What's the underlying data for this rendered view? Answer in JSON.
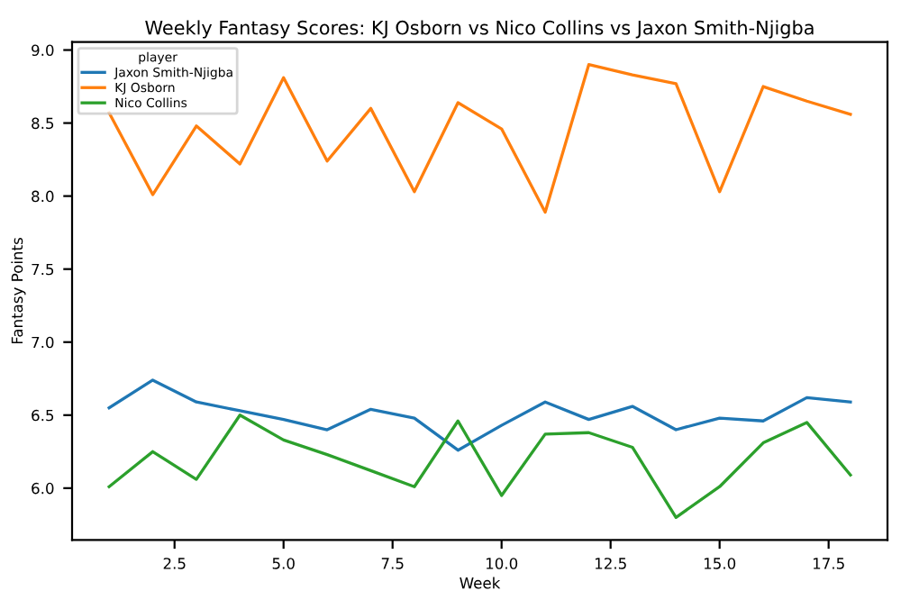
{
  "chart_data": {
    "type": "line",
    "title": "Weekly Fantasy Scores: KJ Osborn vs Nico Collins vs Jaxon Smith-Njigba",
    "xlabel": "Week",
    "ylabel": "Fantasy Points",
    "legend_title": "player",
    "legend": "top left",
    "grid": false,
    "x": [
      1,
      2,
      3,
      4,
      5,
      6,
      7,
      8,
      9,
      10,
      11,
      12,
      13,
      14,
      15,
      16,
      17,
      18
    ],
    "series": [
      {
        "name": "Jaxon Smith-Njigba",
        "color": "#1f77b4",
        "values": [
          6.55,
          6.74,
          6.59,
          6.53,
          6.47,
          6.4,
          6.54,
          6.48,
          6.26,
          6.43,
          6.59,
          6.47,
          6.56,
          6.4,
          6.48,
          6.46,
          6.62,
          6.59
        ]
      },
      {
        "name": "KJ Osborn",
        "color": "#ff7f0e",
        "values": [
          8.57,
          8.01,
          8.48,
          8.22,
          8.81,
          8.24,
          8.6,
          8.03,
          8.64,
          8.46,
          7.89,
          8.9,
          8.83,
          8.77,
          8.03,
          8.75,
          8.65,
          8.56
        ]
      },
      {
        "name": "Nico Collins",
        "color": "#2ca02c",
        "values": [
          6.01,
          6.25,
          6.06,
          6.5,
          6.33,
          6.23,
          6.12,
          6.01,
          6.46,
          5.95,
          6.37,
          6.38,
          6.28,
          5.8,
          6.01,
          6.31,
          6.45,
          6.09
        ]
      }
    ],
    "xlim": [
      0.15,
      18.85
    ],
    "ylim": [
      5.645,
      9.055
    ],
    "xticks": [
      {
        "value": 2.5,
        "label": "2.5"
      },
      {
        "value": 5,
        "label": "5.0"
      },
      {
        "value": 7.5,
        "label": "7.5"
      },
      {
        "value": 10,
        "label": "10.0"
      },
      {
        "value": 12.5,
        "label": "12.5"
      },
      {
        "value": 15,
        "label": "15.0"
      },
      {
        "value": 17.5,
        "label": "17.5"
      }
    ],
    "yticks": [
      {
        "value": 6,
        "label": "6.0"
      },
      {
        "value": 6.5,
        "label": "6.5"
      },
      {
        "value": 7,
        "label": "7.0"
      },
      {
        "value": 7.5,
        "label": "7.5"
      },
      {
        "value": 8,
        "label": "8.0"
      },
      {
        "value": 8.5,
        "label": "8.5"
      },
      {
        "value": 9,
        "label": "9.0"
      }
    ]
  }
}
